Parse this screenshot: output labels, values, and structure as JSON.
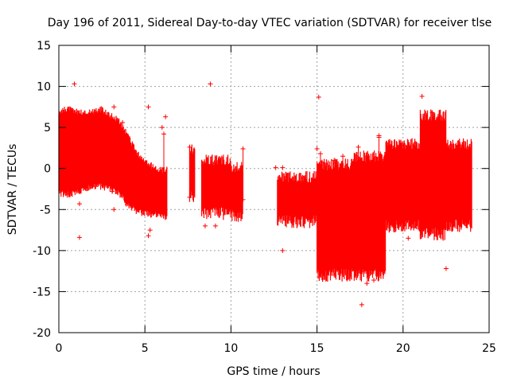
{
  "chart_data": {
    "type": "scatter",
    "title": "Day 196 of 2011, Sidereal Day-to-day VTEC variation (SDTVAR) for receiver tlse",
    "xlabel": "GPS time / hours",
    "ylabel": "SDTVAR / TECUs",
    "xlim": [
      0,
      25
    ],
    "ylim": [
      -20,
      15
    ],
    "xticks": [
      0,
      5,
      10,
      15,
      20,
      25
    ],
    "yticks": [
      -20,
      -15,
      -10,
      -5,
      0,
      5,
      10,
      15
    ],
    "grid": true,
    "marker": "+",
    "series": [
      {
        "name": "SDTVAR",
        "color": "#ff0000",
        "band_upper": [
          [
            0.0,
            7.0
          ],
          [
            0.5,
            7.3
          ],
          [
            1.0,
            7.0
          ],
          [
            1.5,
            6.8
          ],
          [
            2.0,
            7.0
          ],
          [
            2.5,
            7.2
          ],
          [
            3.0,
            6.5
          ],
          [
            3.5,
            5.8
          ],
          [
            4.0,
            4.0
          ],
          [
            4.5,
            2.0
          ],
          [
            5.0,
            0.8
          ],
          [
            5.5,
            0.2
          ],
          [
            6.0,
            -0.2
          ],
          [
            6.3,
            0.0
          ]
        ],
        "band_lower": [
          [
            0.0,
            -3.0
          ],
          [
            0.5,
            -3.2
          ],
          [
            1.0,
            -3.0
          ],
          [
            1.5,
            -2.5
          ],
          [
            2.0,
            -2.2
          ],
          [
            2.5,
            -2.2
          ],
          [
            3.0,
            -2.5
          ],
          [
            3.5,
            -3.0
          ],
          [
            4.0,
            -4.5
          ],
          [
            4.5,
            -5.2
          ],
          [
            5.0,
            -5.5
          ],
          [
            5.5,
            -5.6
          ],
          [
            6.0,
            -5.8
          ],
          [
            6.3,
            -6.0
          ]
        ],
        "band_segments": [
          {
            "x_range": [
              7.6,
              7.9
            ],
            "upper": 2.5,
            "lower": -3.5
          },
          {
            "x_range": [
              8.3,
              10.0
            ],
            "upper": 1.0,
            "lower": -5.5
          },
          {
            "x_range": [
              10.0,
              10.7
            ],
            "upper": 0.2,
            "lower": -5.8
          },
          {
            "x_range": [
              12.7,
              15.0
            ],
            "upper": -1.0,
            "lower": -6.5
          },
          {
            "x_range": [
              15.0,
              17.0
            ],
            "upper": 0.5,
            "lower": -13.0
          },
          {
            "x_range": [
              17.0,
              19.0
            ],
            "upper": 1.5,
            "lower": -13.0
          },
          {
            "x_range": [
              19.0,
              21.0
            ],
            "upper": 3.0,
            "lower": -7.0
          },
          {
            "x_range": [
              21.0,
              22.5
            ],
            "upper": 6.5,
            "lower": -8.0
          },
          {
            "x_range": [
              22.5,
              24.0
            ],
            "upper": 3.0,
            "lower": -7.0
          }
        ],
        "outliers": [
          [
            0.9,
            10.3
          ],
          [
            8.8,
            10.3
          ],
          [
            15.1,
            8.7
          ],
          [
            21.1,
            8.8
          ],
          [
            5.2,
            7.5
          ],
          [
            3.2,
            7.5
          ],
          [
            6.2,
            6.3
          ],
          [
            6.0,
            5.0
          ],
          [
            1.2,
            -4.3
          ],
          [
            3.1,
            -2.8
          ],
          [
            3.2,
            -5.0
          ],
          [
            1.2,
            -8.4
          ],
          [
            5.3,
            -7.5
          ],
          [
            5.2,
            -8.2
          ],
          [
            8.5,
            -7.0
          ],
          [
            9.1,
            -7.0
          ],
          [
            13.0,
            -10.0
          ],
          [
            16.0,
            -13.0
          ],
          [
            17.6,
            -16.6
          ],
          [
            18.3,
            -13.6
          ],
          [
            22.5,
            -12.2
          ],
          [
            20.3,
            -8.5
          ],
          [
            17.9,
            -14.0
          ],
          [
            15.0,
            2.4
          ],
          [
            16.0,
            1.0
          ],
          [
            18.6,
            3.8
          ],
          [
            12.6,
            0.1
          ],
          [
            13.0,
            0.1
          ]
        ],
        "spikes": [
          [
            3.7,
            -1.5,
            5.6
          ],
          [
            4.1,
            -3.0,
            3.0
          ],
          [
            6.1,
            -5.0,
            4.2
          ],
          [
            7.6,
            -3.5,
            2.6
          ],
          [
            10.7,
            -3.8,
            2.4
          ],
          [
            15.2,
            -6.0,
            1.8
          ],
          [
            16.5,
            -9.0,
            1.5
          ],
          [
            17.4,
            -8.0,
            2.6
          ],
          [
            18.6,
            -10.0,
            4.0
          ],
          [
            21.7,
            -3.0,
            6.8
          ]
        ]
      }
    ]
  }
}
